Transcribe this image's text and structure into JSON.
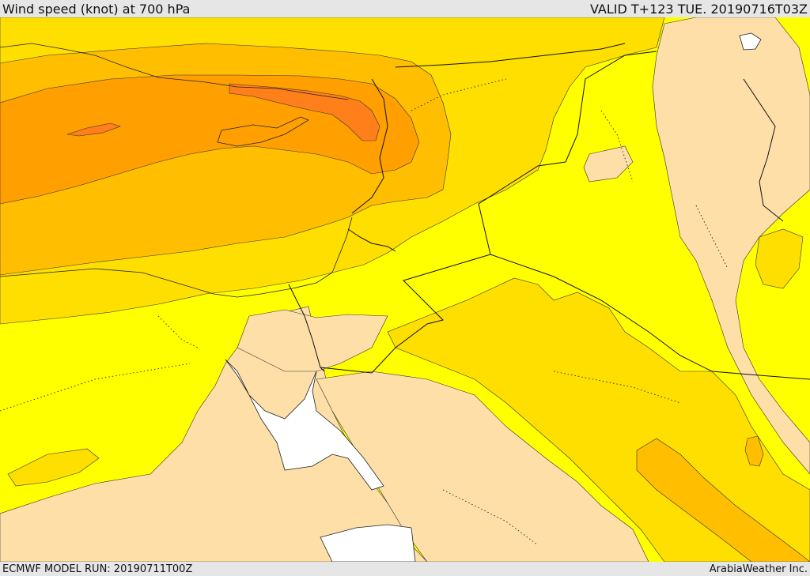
{
  "header": {
    "title": "Wind speed (knot) at 700 hPa",
    "valid": "VALID T+123 TUE. 20190716T03Z"
  },
  "footer": {
    "model_run": "ECMWF MODEL RUN: 20190711T00Z",
    "credit": "ArabiaWeather Inc."
  },
  "colors": {
    "band_calm": "#ffdfa8",
    "band_light": "#ffff00",
    "band_moderate": "#ffdf00",
    "band_fresh": "#ffbf00",
    "band_strong": "#ff9f00",
    "band_very_strong": "#ff7f1a",
    "water_gap": "#ffffff",
    "border": "#000000"
  }
}
